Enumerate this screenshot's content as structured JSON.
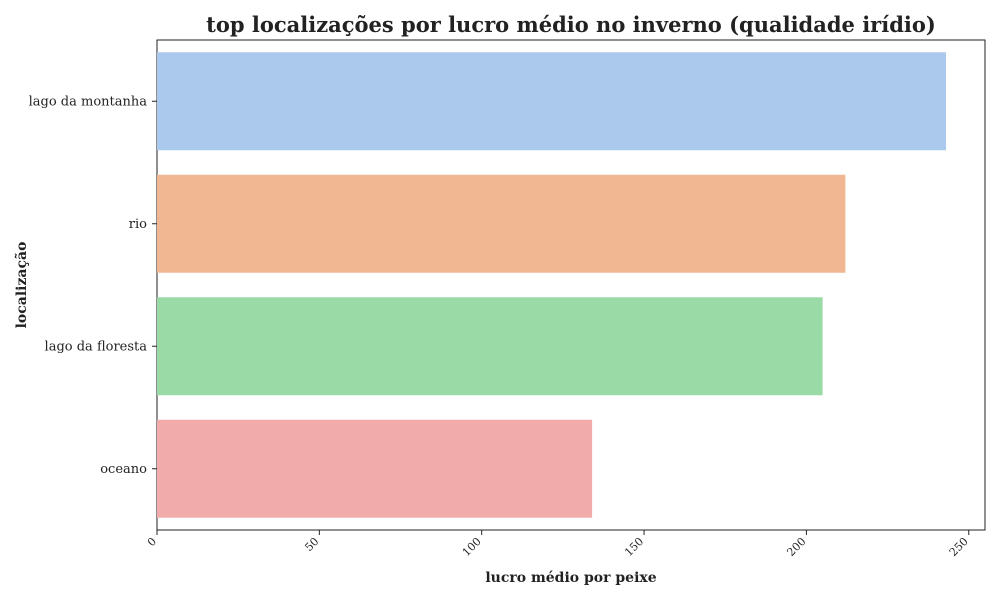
{
  "chart_data": {
    "type": "bar",
    "orientation": "horizontal",
    "title": "top localizações por lucro médio no inverno (qualidade irídio)",
    "xlabel": "lucro médio por peixe",
    "ylabel": "localização",
    "categories": [
      "lago da montanha",
      "rio",
      "lago da floresta",
      "oceano"
    ],
    "values": [
      243,
      212,
      205,
      134
    ],
    "colors": [
      "#abc9ed",
      "#f0b793",
      "#9adaa6",
      "#f1abab"
    ],
    "xlim": [
      0,
      255
    ],
    "xticks": [
      0,
      50,
      100,
      150,
      200,
      250
    ],
    "xtick_labels": [
      "0",
      "50",
      "100",
      "150",
      "200",
      "250"
    ],
    "grid": false,
    "legend": "none"
  }
}
